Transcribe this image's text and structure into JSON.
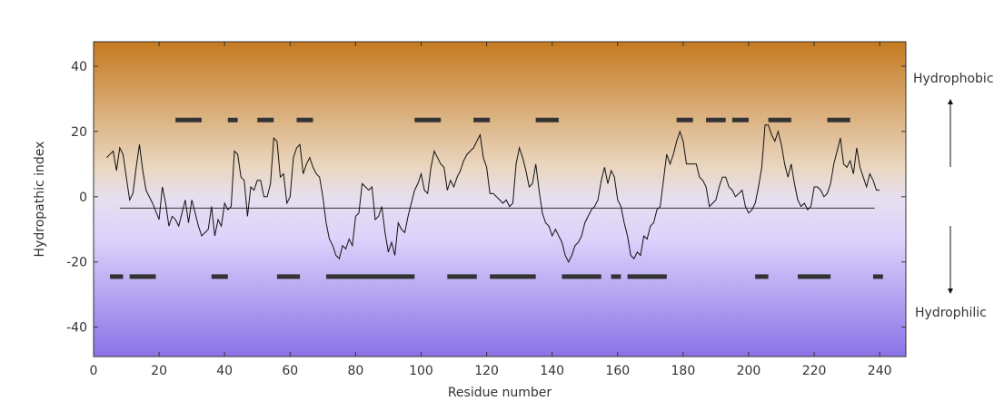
{
  "chart_data": {
    "type": "line",
    "title": "",
    "xlabel": "Residue number",
    "ylabel": "Hydropathic index",
    "xlim": [
      0,
      248
    ],
    "ylim": [
      -49,
      47.5
    ],
    "x_ticks": [
      0,
      20,
      40,
      60,
      80,
      100,
      120,
      140,
      160,
      180,
      200,
      220,
      240
    ],
    "y_ticks": [
      -40,
      -20,
      0,
      20,
      40
    ],
    "grid": false,
    "legend": "none",
    "side_labels": {
      "top": "Hydrophobic",
      "bottom": "Hydrophilic"
    },
    "gradient_colors": [
      "#c57a20",
      "#ead7c1",
      "#e6dff0",
      "#ddd3fb",
      "#8a72e6"
    ],
    "line_color": "#111111",
    "segment_color": "#333333",
    "reference_line_y": -3.5,
    "series": [
      {
        "values": [
          [
            4,
            12
          ],
          [
            6,
            14
          ],
          [
            7,
            8
          ],
          [
            8,
            15
          ],
          [
            9,
            13
          ],
          [
            10,
            6
          ],
          [
            11,
            -1
          ],
          [
            12,
            1
          ],
          [
            13,
            9
          ],
          [
            14,
            16
          ],
          [
            15,
            8
          ],
          [
            16,
            2
          ],
          [
            18,
            -2
          ],
          [
            20,
            -7
          ],
          [
            21,
            3
          ],
          [
            22,
            -2
          ],
          [
            23,
            -9
          ],
          [
            24,
            -6
          ],
          [
            25,
            -7
          ],
          [
            26,
            -9
          ],
          [
            27,
            -5
          ],
          [
            28,
            -1
          ],
          [
            29,
            -8
          ],
          [
            30,
            -1
          ],
          [
            31,
            -5
          ],
          [
            32,
            -9
          ],
          [
            33,
            -12
          ],
          [
            35,
            -10
          ],
          [
            36,
            -3
          ],
          [
            37,
            -12
          ],
          [
            38,
            -7
          ],
          [
            39,
            -9
          ],
          [
            40,
            -2
          ],
          [
            41,
            -4
          ],
          [
            42,
            -3
          ],
          [
            43,
            14
          ],
          [
            44,
            13
          ],
          [
            45,
            6
          ],
          [
            46,
            5
          ],
          [
            47,
            -6
          ],
          [
            48,
            3
          ],
          [
            49,
            2
          ],
          [
            50,
            5
          ],
          [
            51,
            5
          ],
          [
            52,
            0
          ],
          [
            53,
            0
          ],
          [
            54,
            4
          ],
          [
            55,
            18
          ],
          [
            56,
            17
          ],
          [
            57,
            6
          ],
          [
            58,
            7
          ],
          [
            59,
            -2
          ],
          [
            60,
            0
          ],
          [
            61,
            12
          ],
          [
            62,
            15
          ],
          [
            63,
            16
          ],
          [
            64,
            7
          ],
          [
            65,
            10
          ],
          [
            66,
            12
          ],
          [
            67,
            9
          ],
          [
            68,
            7
          ],
          [
            69,
            6
          ],
          [
            70,
            0
          ],
          [
            71,
            -8
          ],
          [
            72,
            -13
          ],
          [
            73,
            -15
          ],
          [
            74,
            -18
          ],
          [
            75,
            -19
          ],
          [
            76,
            -15
          ],
          [
            77,
            -16
          ],
          [
            78,
            -13
          ],
          [
            79,
            -15
          ],
          [
            80,
            -6
          ],
          [
            81,
            -5
          ],
          [
            82,
            4
          ],
          [
            83,
            3
          ],
          [
            84,
            2
          ],
          [
            85,
            3
          ],
          [
            86,
            -7
          ],
          [
            87,
            -6
          ],
          [
            88,
            -3
          ],
          [
            89,
            -11
          ],
          [
            90,
            -17
          ],
          [
            91,
            -14
          ],
          [
            92,
            -18
          ],
          [
            93,
            -8
          ],
          [
            94,
            -10
          ],
          [
            95,
            -11
          ],
          [
            96,
            -6
          ],
          [
            97,
            -2
          ],
          [
            98,
            2
          ],
          [
            99,
            4
          ],
          [
            100,
            7
          ],
          [
            101,
            2
          ],
          [
            102,
            1
          ],
          [
            103,
            9
          ],
          [
            104,
            14
          ],
          [
            105,
            12
          ],
          [
            106,
            10
          ],
          [
            107,
            9
          ],
          [
            108,
            2
          ],
          [
            109,
            5
          ],
          [
            110,
            3
          ],
          [
            111,
            6
          ],
          [
            112,
            8
          ],
          [
            113,
            11
          ],
          [
            114,
            13
          ],
          [
            115,
            14
          ],
          [
            116,
            15
          ],
          [
            117,
            17
          ],
          [
            118,
            19
          ],
          [
            119,
            12
          ],
          [
            120,
            9
          ],
          [
            121,
            1
          ],
          [
            122,
            1
          ],
          [
            123,
            0
          ],
          [
            124,
            -1
          ],
          [
            125,
            -2
          ],
          [
            126,
            -1
          ],
          [
            127,
            -3
          ],
          [
            128,
            -2
          ],
          [
            129,
            10
          ],
          [
            130,
            15
          ],
          [
            131,
            12
          ],
          [
            132,
            8
          ],
          [
            133,
            3
          ],
          [
            134,
            4
          ],
          [
            135,
            10
          ],
          [
            136,
            2
          ],
          [
            137,
            -5
          ],
          [
            138,
            -8
          ],
          [
            139,
            -9
          ],
          [
            140,
            -12
          ],
          [
            141,
            -10
          ],
          [
            142,
            -12
          ],
          [
            143,
            -14
          ],
          [
            144,
            -18
          ],
          [
            145,
            -20
          ],
          [
            146,
            -18
          ],
          [
            147,
            -15
          ],
          [
            148,
            -14
          ],
          [
            149,
            -12
          ],
          [
            150,
            -8
          ],
          [
            151,
            -6
          ],
          [
            152,
            -4
          ],
          [
            153,
            -3
          ],
          [
            154,
            -1
          ],
          [
            155,
            5
          ],
          [
            156,
            9
          ],
          [
            157,
            4
          ],
          [
            158,
            8
          ],
          [
            159,
            6
          ],
          [
            160,
            -1
          ],
          [
            161,
            -3
          ],
          [
            162,
            -8
          ],
          [
            163,
            -12
          ],
          [
            164,
            -18
          ],
          [
            165,
            -19
          ],
          [
            166,
            -17
          ],
          [
            167,
            -18
          ],
          [
            168,
            -12
          ],
          [
            169,
            -13
          ],
          [
            170,
            -9
          ],
          [
            171,
            -8
          ],
          [
            172,
            -4
          ],
          [
            173,
            -3
          ],
          [
            174,
            5
          ],
          [
            175,
            13
          ],
          [
            176,
            10
          ],
          [
            177,
            13
          ],
          [
            178,
            17
          ],
          [
            179,
            20
          ],
          [
            180,
            17
          ],
          [
            181,
            10
          ],
          [
            182,
            10
          ],
          [
            183,
            10
          ],
          [
            184,
            10
          ],
          [
            185,
            6
          ],
          [
            186,
            5
          ],
          [
            187,
            3
          ],
          [
            188,
            -3
          ],
          [
            189,
            -2
          ],
          [
            190,
            -1
          ],
          [
            191,
            3
          ],
          [
            192,
            6
          ],
          [
            193,
            6
          ],
          [
            194,
            3
          ],
          [
            195,
            2
          ],
          [
            196,
            0
          ],
          [
            197,
            1
          ],
          [
            198,
            2
          ],
          [
            199,
            -3
          ],
          [
            200,
            -5
          ],
          [
            201,
            -4
          ],
          [
            202,
            -2
          ],
          [
            203,
            3
          ],
          [
            204,
            9
          ],
          [
            205,
            22
          ],
          [
            206,
            22
          ],
          [
            207,
            19
          ],
          [
            208,
            17
          ],
          [
            209,
            20
          ],
          [
            210,
            16
          ],
          [
            211,
            10
          ],
          [
            212,
            6
          ],
          [
            213,
            10
          ],
          [
            214,
            4
          ],
          [
            215,
            -1
          ],
          [
            216,
            -3
          ],
          [
            217,
            -2
          ],
          [
            218,
            -4
          ],
          [
            219,
            -3
          ],
          [
            220,
            3
          ],
          [
            221,
            3
          ],
          [
            222,
            2
          ],
          [
            223,
            0
          ],
          [
            224,
            1
          ],
          [
            225,
            4
          ],
          [
            226,
            10
          ],
          [
            227,
            14
          ],
          [
            228,
            18
          ],
          [
            229,
            10
          ],
          [
            230,
            9
          ],
          [
            231,
            11
          ],
          [
            232,
            7
          ],
          [
            233,
            15
          ],
          [
            234,
            9
          ],
          [
            235,
            6
          ],
          [
            236,
            3
          ],
          [
            237,
            7
          ],
          [
            238,
            5
          ],
          [
            239,
            2
          ],
          [
            240,
            2
          ]
        ]
      }
    ],
    "hydrophobic_segments": [
      [
        25,
        33
      ],
      [
        41,
        44
      ],
      [
        50,
        55
      ],
      [
        62,
        67
      ],
      [
        98,
        106
      ],
      [
        116,
        121
      ],
      [
        135,
        142
      ],
      [
        178,
        183
      ],
      [
        187,
        193
      ],
      [
        195,
        200
      ],
      [
        206,
        213
      ],
      [
        224,
        231
      ]
    ],
    "hydrophilic_segments": [
      [
        5,
        9
      ],
      [
        11,
        19
      ],
      [
        36,
        41
      ],
      [
        56,
        63
      ],
      [
        71,
        98
      ],
      [
        108,
        117
      ],
      [
        121,
        135
      ],
      [
        143,
        155
      ],
      [
        158,
        161
      ],
      [
        163,
        175
      ],
      [
        202,
        206
      ],
      [
        215,
        225
      ],
      [
        238,
        241
      ]
    ],
    "hydrophobic_segment_y": 23.5,
    "hydrophilic_segment_y": -24.5
  }
}
